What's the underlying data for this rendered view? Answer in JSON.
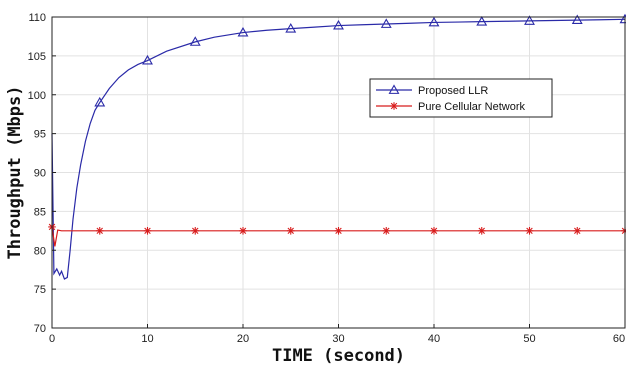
{
  "chart_data": {
    "type": "line",
    "title": "",
    "xlabel": "TIME (second)",
    "ylabel": "Throughput (Mbps)",
    "xlim": [
      0,
      60
    ],
    "ylim": [
      70,
      110
    ],
    "xticks": [
      0,
      10,
      20,
      30,
      40,
      50,
      60
    ],
    "yticks": [
      70,
      75,
      80,
      85,
      90,
      95,
      100,
      105,
      110
    ],
    "grid": true,
    "legend_position": "right",
    "series": [
      {
        "name": "Proposed LLR",
        "color": "#2a2aa8",
        "marker": "triangle",
        "x": [
          0,
          0.2,
          0.5,
          0.8,
          1.0,
          1.3,
          1.6,
          1.9,
          2.2,
          2.6,
          3.0,
          3.5,
          4.0,
          4.5,
          5,
          6,
          7,
          8,
          9,
          10,
          12,
          15,
          17,
          20,
          22.5,
          25,
          27.5,
          30,
          32.5,
          35,
          37.5,
          40,
          42.5,
          45,
          47.5,
          50,
          52.5,
          55,
          57.5,
          60
        ],
        "y": [
          95,
          77,
          77.6,
          76.8,
          77.3,
          76.3,
          76.5,
          80,
          84,
          88,
          91,
          94,
          96.3,
          98,
          99.0,
          100.8,
          102.2,
          103.2,
          103.9,
          104.4,
          105.6,
          106.8,
          107.4,
          108.0,
          108.3,
          108.5,
          108.7,
          108.9,
          109.0,
          109.1,
          109.2,
          109.3,
          109.35,
          109.4,
          109.45,
          109.5,
          109.55,
          109.6,
          109.65,
          109.7
        ],
        "marker_x": [
          5,
          10,
          15,
          20,
          25,
          30,
          35,
          40,
          45,
          50,
          55,
          60
        ]
      },
      {
        "name": "Pure Cellular Network",
        "color": "#d81c1c",
        "marker": "star",
        "x": [
          0,
          0.3,
          0.6,
          1.0,
          5,
          10,
          15,
          20,
          25,
          30,
          35,
          40,
          45,
          50,
          55,
          60
        ],
        "y": [
          83,
          80.5,
          82.6,
          82.5,
          82.5,
          82.5,
          82.5,
          82.5,
          82.5,
          82.5,
          82.5,
          82.5,
          82.5,
          82.5,
          82.5,
          82.5
        ],
        "marker_x": [
          0,
          5,
          10,
          15,
          20,
          25,
          30,
          35,
          40,
          45,
          50,
          55,
          60
        ]
      }
    ]
  }
}
